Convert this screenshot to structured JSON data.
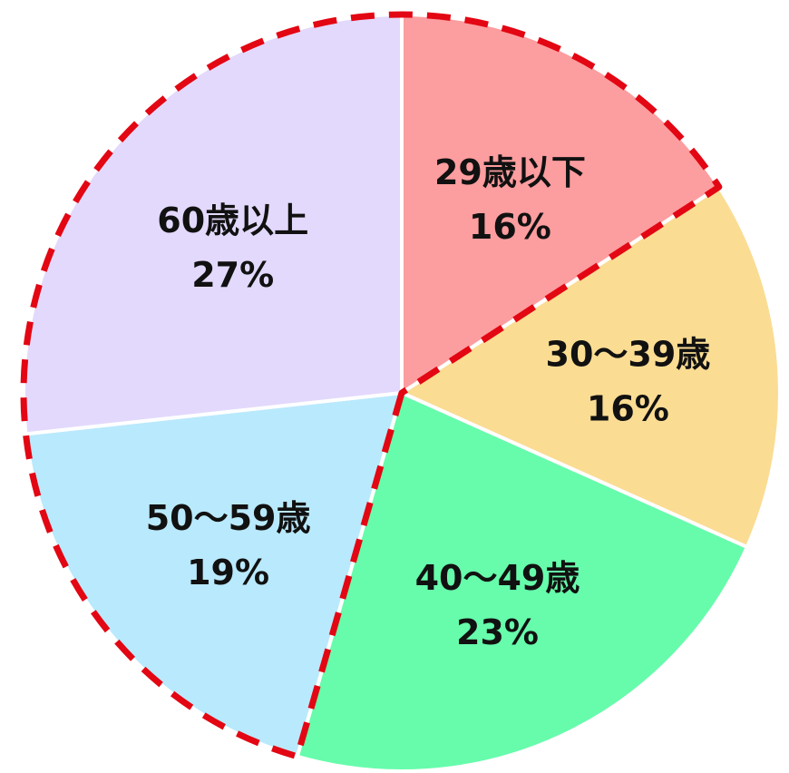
{
  "chart_data": {
    "type": "pie",
    "categories": [
      "29歳以下",
      "30～39歳",
      "40～49歳",
      "50～59歳",
      "60歳以上"
    ],
    "values": [
      16,
      16,
      23,
      19,
      27
    ],
    "value_labels": [
      "16%",
      "16%",
      "23%",
      "19%",
      "27%"
    ],
    "colors": [
      "#fc9d9f",
      "#fadc93",
      "#66fcab",
      "#b9e9fc",
      "#e3d9fc"
    ],
    "start_angle_deg": 0,
    "direction": "clockwise",
    "highlight": {
      "slices": [
        "60歳以上",
        "50～59歳",
        "29歳以下"
      ],
      "style": "dashed",
      "color": "#e30613"
    }
  }
}
